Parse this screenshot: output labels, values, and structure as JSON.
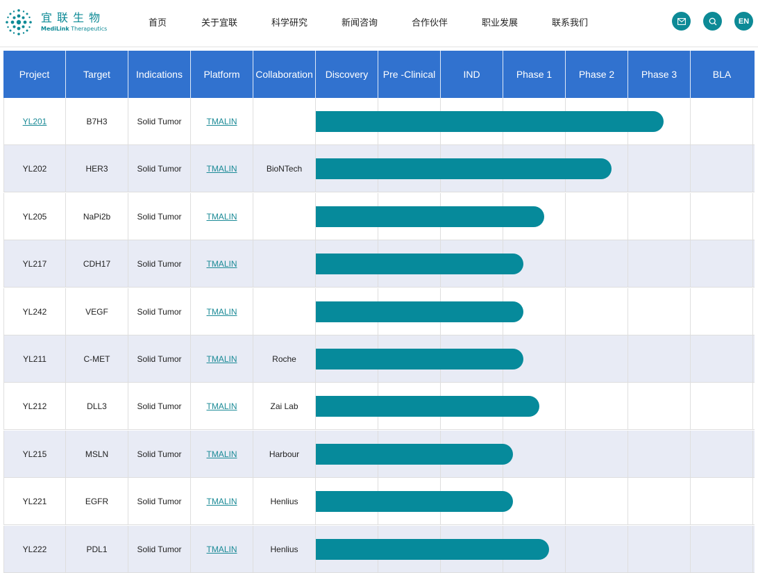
{
  "header": {
    "logo": {
      "cn": "宜联生物",
      "en_bold": "MediLink",
      "en_rest": " Therapeutics",
      "icon": "molecule-dots-logo"
    },
    "nav": [
      {
        "label": "首页",
        "name": "nav-home"
      },
      {
        "label": "关于宜联",
        "name": "nav-about"
      },
      {
        "label": "科学研究",
        "name": "nav-research"
      },
      {
        "label": "新闻咨询",
        "name": "nav-news"
      },
      {
        "label": "合作伙伴",
        "name": "nav-partners"
      },
      {
        "label": "职业发展",
        "name": "nav-careers"
      },
      {
        "label": "联系我们",
        "name": "nav-contact"
      }
    ],
    "buttons": {
      "mail_icon": "mail-icon",
      "search_icon": "search-icon",
      "lang_label": "EN"
    },
    "accent_color": "#0d8a96"
  },
  "pipeline": {
    "header_color": "#3172cf",
    "bar_color": "#068a9b",
    "columns": [
      "Project",
      "Target",
      "Indications",
      "Platform",
      "Collaboration",
      "Discovery",
      "Pre -Clinical",
      "IND",
      "Phase 1",
      "Phase 2",
      "Phase 3",
      "BLA"
    ],
    "stages": [
      "Discovery",
      "Pre -Clinical",
      "IND",
      "Phase 1",
      "Phase 2",
      "Phase 3",
      "BLA"
    ],
    "rows": [
      {
        "project": "YL201",
        "project_link": true,
        "target": "B7H3",
        "indication": "Solid Tumor",
        "platform": "TMALIN",
        "collaboration": "",
        "progress_stages": 5.57
      },
      {
        "project": "YL202",
        "project_link": false,
        "target": "HER3",
        "indication": "Solid Tumor",
        "platform": "TMALIN",
        "collaboration": "BioNTech",
        "progress_stages": 4.73
      },
      {
        "project": "YL205",
        "project_link": false,
        "target": "NaPi2b",
        "indication": "Solid Tumor",
        "platform": "TMALIN",
        "collaboration": "",
        "progress_stages": 3.66
      },
      {
        "project": "YL217",
        "project_link": false,
        "target": "CDH17",
        "indication": "Solid Tumor",
        "platform": "TMALIN",
        "collaboration": "",
        "progress_stages": 3.32
      },
      {
        "project": "YL242",
        "project_link": false,
        "target": "VEGF",
        "indication": "Solid Tumor",
        "platform": "TMALIN",
        "collaboration": "",
        "progress_stages": 3.32
      },
      {
        "project": "YL211",
        "project_link": false,
        "target": "C-MET",
        "indication": "Solid Tumor",
        "platform": "TMALIN",
        "collaboration": "Roche",
        "progress_stages": 3.32
      },
      {
        "project": "YL212",
        "project_link": false,
        "target": "DLL3",
        "indication": "Solid Tumor",
        "platform": "TMALIN",
        "collaboration": "Zai Lab",
        "progress_stages": 3.58
      },
      {
        "project": "YL215",
        "project_link": false,
        "target": "MSLN",
        "indication": "Solid Tumor",
        "platform": "TMALIN",
        "collaboration": "Harbour",
        "progress_stages": 3.16
      },
      {
        "project": "YL221",
        "project_link": false,
        "target": "EGFR",
        "indication": "Solid Tumor",
        "platform": "TMALIN",
        "collaboration": "Henlius",
        "progress_stages": 3.16
      },
      {
        "project": "YL222",
        "project_link": false,
        "target": "PDL1",
        "indication": "Solid Tumor",
        "platform": "TMALIN",
        "collaboration": "Henlius",
        "progress_stages": 3.73
      }
    ]
  }
}
